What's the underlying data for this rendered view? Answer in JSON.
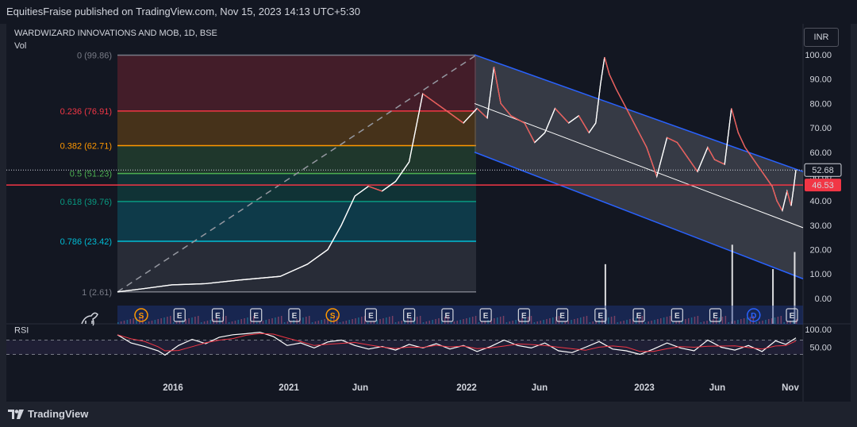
{
  "header": {
    "published": "EquitiesFraise published on TradingView.com, Nov 15, 2023 14:13 UTC+5:30"
  },
  "currency": "INR",
  "footer": {
    "brand": "TradingView"
  },
  "colors": {
    "up": "#26a69a",
    "down": "#ef5350",
    "price_line": "#ffffff",
    "fib_236": "#f23645",
    "fib_382": "#ff9800",
    "fib_5": "#4caf50",
    "fib_618": "#089981",
    "fib_786": "#00bcd4",
    "channel": "#2962ff",
    "mid_line": "#ffffff",
    "rsi_line": "#ffffff",
    "rsi_ma": "#f23645",
    "current_price_bg": "#131722",
    "level_bg": "#f23645"
  },
  "chart_data": [
    {
      "type": "line",
      "title": "WARDWIZARD INNOVATIONS AND MOB, 1D, BSE",
      "subtitle": "Vol",
      "y_axis": {
        "ticks": [
          "100.00",
          "90.00",
          "80.00",
          "70.00",
          "60.00",
          "50.00",
          "40.00",
          "30.00",
          "20.00",
          "10.00",
          "0.00"
        ],
        "tick_values": [
          100,
          90,
          80,
          70,
          60,
          50,
          40,
          30,
          20,
          10,
          0
        ],
        "ylim": [
          -3,
          101
        ]
      },
      "x_axis": {
        "ticks": [
          "2016",
          "2021",
          "Jun",
          "2022",
          "Jun",
          "2023",
          "Jun",
          "Nov"
        ]
      },
      "current_price": "52.68",
      "level_line": "46.53",
      "fibonacci": [
        {
          "level": "0",
          "price": "99.86",
          "label": "0 (99.86)",
          "value": 99.86
        },
        {
          "level": "0.236",
          "price": "76.91",
          "label": "0.236 (76.91)",
          "value": 76.91
        },
        {
          "level": "0.382",
          "price": "62.71",
          "label": "0.382 (62.71)",
          "value": 62.71
        },
        {
          "level": "0.5",
          "price": "51.23",
          "label": "0.5 (51.23)",
          "value": 51.23
        },
        {
          "level": "0.618",
          "price": "39.76",
          "label": "0.618 (39.76)",
          "value": 39.76
        },
        {
          "level": "0.786",
          "price": "23.42",
          "label": "0.786 (23.42)",
          "value": 23.42
        },
        {
          "level": "1",
          "price": "2.61",
          "label": "1 (2.61)",
          "value": 2.61
        }
      ],
      "price_series": [
        {
          "t": 0,
          "v": 2.6
        },
        {
          "t": 0.04,
          "v": 4
        },
        {
          "t": 0.08,
          "v": 5.5
        },
        {
          "t": 0.13,
          "v": 6
        },
        {
          "t": 0.18,
          "v": 7.5
        },
        {
          "t": 0.24,
          "v": 9
        },
        {
          "t": 0.28,
          "v": 14
        },
        {
          "t": 0.31,
          "v": 20
        },
        {
          "t": 0.33,
          "v": 30
        },
        {
          "t": 0.35,
          "v": 42
        },
        {
          "t": 0.37,
          "v": 46
        },
        {
          "t": 0.39,
          "v": 44
        },
        {
          "t": 0.41,
          "v": 48
        },
        {
          "t": 0.43,
          "v": 56
        },
        {
          "t": 0.45,
          "v": 84
        },
        {
          "t": 0.47,
          "v": 80
        },
        {
          "t": 0.49,
          "v": 76
        },
        {
          "t": 0.51,
          "v": 72
        },
        {
          "t": 0.53,
          "v": 78
        },
        {
          "t": 0.545,
          "v": 74
        },
        {
          "t": 0.555,
          "v": 95
        },
        {
          "t": 0.565,
          "v": 80
        },
        {
          "t": 0.58,
          "v": 75
        },
        {
          "t": 0.6,
          "v": 72
        },
        {
          "t": 0.615,
          "v": 64
        },
        {
          "t": 0.63,
          "v": 68
        },
        {
          "t": 0.645,
          "v": 78
        },
        {
          "t": 0.665,
          "v": 72
        },
        {
          "t": 0.68,
          "v": 75
        },
        {
          "t": 0.695,
          "v": 68
        },
        {
          "t": 0.705,
          "v": 72
        },
        {
          "t": 0.712,
          "v": 88
        },
        {
          "t": 0.718,
          "v": 99
        },
        {
          "t": 0.725,
          "v": 92
        },
        {
          "t": 0.735,
          "v": 86
        },
        {
          "t": 0.75,
          "v": 78
        },
        {
          "t": 0.765,
          "v": 70
        },
        {
          "t": 0.78,
          "v": 62
        },
        {
          "t": 0.795,
          "v": 50
        },
        {
          "t": 0.81,
          "v": 66
        },
        {
          "t": 0.825,
          "v": 64
        },
        {
          "t": 0.84,
          "v": 58
        },
        {
          "t": 0.855,
          "v": 52
        },
        {
          "t": 0.87,
          "v": 62
        },
        {
          "t": 0.88,
          "v": 57
        },
        {
          "t": 0.895,
          "v": 55
        },
        {
          "t": 0.905,
          "v": 78
        },
        {
          "t": 0.915,
          "v": 68
        },
        {
          "t": 0.925,
          "v": 62
        },
        {
          "t": 0.94,
          "v": 56
        },
        {
          "t": 0.955,
          "v": 50
        },
        {
          "t": 0.965,
          "v": 46
        },
        {
          "t": 0.972,
          "v": 40
        },
        {
          "t": 0.98,
          "v": 36
        },
        {
          "t": 0.987,
          "v": 44
        },
        {
          "t": 0.993,
          "v": 38
        },
        {
          "t": 0.997,
          "v": 46
        },
        {
          "t": 1.0,
          "v": 52.7
        }
      ],
      "volume_spikes": [
        {
          "t": 0.718,
          "v": 14
        },
        {
          "t": 0.905,
          "v": 22
        },
        {
          "t": 0.965,
          "v": 12
        },
        {
          "t": 0.997,
          "v": 19
        }
      ],
      "events": [
        "S",
        "E",
        "E",
        "E",
        "E",
        "S",
        "E",
        "E",
        "E",
        "E",
        "E",
        "E",
        "E",
        "E",
        "E",
        "E",
        "D",
        "E"
      ]
    },
    {
      "type": "line",
      "title": "RSI",
      "y_axis": {
        "ticks": [
          "100.00",
          "50.00"
        ],
        "tick_values": [
          100,
          50
        ],
        "ylim": [
          0,
          100
        ]
      },
      "bands": [
        70,
        30
      ],
      "rsi_series": [
        {
          "t": 0.0,
          "v": 85
        },
        {
          "t": 0.02,
          "v": 62
        },
        {
          "t": 0.04,
          "v": 52
        },
        {
          "t": 0.06,
          "v": 40
        },
        {
          "t": 0.07,
          "v": 28
        },
        {
          "t": 0.09,
          "v": 55
        },
        {
          "t": 0.11,
          "v": 72
        },
        {
          "t": 0.13,
          "v": 60
        },
        {
          "t": 0.15,
          "v": 78
        },
        {
          "t": 0.17,
          "v": 85
        },
        {
          "t": 0.19,
          "v": 88
        },
        {
          "t": 0.21,
          "v": 92
        },
        {
          "t": 0.23,
          "v": 80
        },
        {
          "t": 0.25,
          "v": 55
        },
        {
          "t": 0.27,
          "v": 62
        },
        {
          "t": 0.29,
          "v": 48
        },
        {
          "t": 0.31,
          "v": 65
        },
        {
          "t": 0.33,
          "v": 70
        },
        {
          "t": 0.35,
          "v": 55
        },
        {
          "t": 0.37,
          "v": 45
        },
        {
          "t": 0.39,
          "v": 52
        },
        {
          "t": 0.41,
          "v": 42
        },
        {
          "t": 0.43,
          "v": 58
        },
        {
          "t": 0.45,
          "v": 48
        },
        {
          "t": 0.47,
          "v": 60
        },
        {
          "t": 0.49,
          "v": 45
        },
        {
          "t": 0.51,
          "v": 55
        },
        {
          "t": 0.53,
          "v": 38
        },
        {
          "t": 0.55,
          "v": 52
        },
        {
          "t": 0.57,
          "v": 70
        },
        {
          "t": 0.59,
          "v": 55
        },
        {
          "t": 0.61,
          "v": 48
        },
        {
          "t": 0.63,
          "v": 62
        },
        {
          "t": 0.65,
          "v": 40
        },
        {
          "t": 0.67,
          "v": 35
        },
        {
          "t": 0.69,
          "v": 50
        },
        {
          "t": 0.71,
          "v": 66
        },
        {
          "t": 0.73,
          "v": 45
        },
        {
          "t": 0.75,
          "v": 40
        },
        {
          "t": 0.77,
          "v": 30
        },
        {
          "t": 0.79,
          "v": 45
        },
        {
          "t": 0.81,
          "v": 62
        },
        {
          "t": 0.83,
          "v": 48
        },
        {
          "t": 0.85,
          "v": 40
        },
        {
          "t": 0.87,
          "v": 70
        },
        {
          "t": 0.89,
          "v": 50
        },
        {
          "t": 0.91,
          "v": 42
        },
        {
          "t": 0.93,
          "v": 55
        },
        {
          "t": 0.95,
          "v": 38
        },
        {
          "t": 0.97,
          "v": 68
        },
        {
          "t": 0.985,
          "v": 58
        },
        {
          "t": 1.0,
          "v": 76
        }
      ]
    }
  ]
}
